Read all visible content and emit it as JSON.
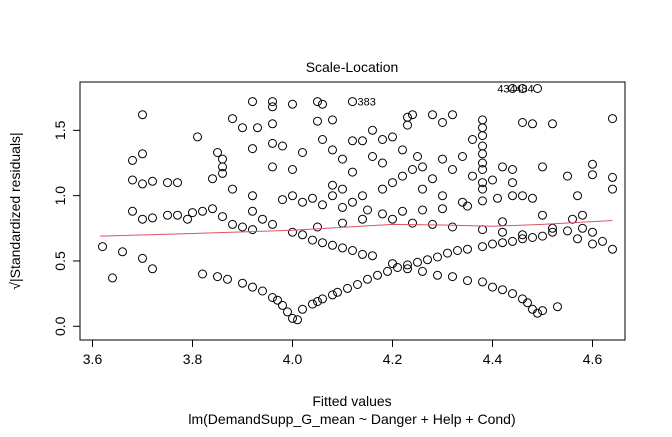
{
  "chart_data": {
    "type": "scatter",
    "title": "Scale-Location",
    "xlabel": "Fitted values",
    "subtitle": "lm(DemandSupp_G_mean ~ Danger + Help + Cond)",
    "ylabel": "√|Standardized residuals|",
    "xlim": [
      3.575,
      4.665
    ],
    "ylim": [
      -0.105,
      1.87
    ],
    "x_ticks": [
      3.6,
      3.8,
      4.0,
      4.2,
      4.4,
      4.6
    ],
    "x_tick_labels": [
      "3.6",
      "3.8",
      "4.0",
      "4.2",
      "4.4",
      "4.6"
    ],
    "y_ticks": [
      0.0,
      0.5,
      1.0,
      1.5
    ],
    "y_tick_labels": [
      "0.0",
      "0.5",
      "1.0",
      "1.5"
    ],
    "grid": false,
    "line_color": "#DF536B",
    "smoother": [
      [
        3.615,
        0.69
      ],
      [
        3.8,
        0.71
      ],
      [
        4.0,
        0.735
      ],
      [
        4.2,
        0.78
      ],
      [
        4.3,
        0.775
      ],
      [
        4.4,
        0.765
      ],
      [
        4.5,
        0.78
      ],
      [
        4.64,
        0.81
      ]
    ],
    "labels": [
      {
        "text": "383",
        "x": 4.12,
        "y": 1.72
      },
      {
        "text": "434",
        "x": 4.44,
        "y": 1.82
      },
      {
        "text": "484",
        "x": 4.46,
        "y": 1.82
      }
    ],
    "points": [
      [
        3.82,
        0.4
      ],
      [
        3.85,
        0.38
      ],
      [
        3.87,
        0.36
      ],
      [
        3.9,
        0.33
      ],
      [
        3.92,
        0.3
      ],
      [
        3.94,
        0.27
      ],
      [
        3.96,
        0.22
      ],
      [
        3.97,
        0.2
      ],
      [
        3.98,
        0.16
      ],
      [
        3.99,
        0.11
      ],
      [
        4.0,
        0.06
      ],
      [
        4.01,
        0.05
      ],
      [
        4.02,
        0.13
      ],
      [
        4.04,
        0.17
      ],
      [
        4.05,
        0.19
      ],
      [
        4.06,
        0.21
      ],
      [
        4.08,
        0.24
      ],
      [
        4.09,
        0.26
      ],
      [
        4.11,
        0.29
      ],
      [
        4.13,
        0.32
      ],
      [
        4.15,
        0.36
      ],
      [
        4.17,
        0.39
      ],
      [
        4.19,
        0.42
      ],
      [
        4.21,
        0.45
      ],
      [
        4.23,
        0.47
      ],
      [
        4.25,
        0.49
      ],
      [
        4.27,
        0.51
      ],
      [
        4.29,
        0.53
      ],
      [
        4.31,
        0.56
      ],
      [
        4.33,
        0.58
      ],
      [
        4.35,
        0.59
      ],
      [
        4.38,
        0.61
      ],
      [
        4.4,
        0.63
      ],
      [
        4.42,
        0.64
      ],
      [
        4.44,
        0.65
      ],
      [
        4.46,
        0.67
      ],
      [
        4.48,
        0.68
      ],
      [
        4.02,
        0.7
      ],
      [
        4.04,
        0.66
      ],
      [
        4.06,
        0.64
      ],
      [
        4.08,
        0.62
      ],
      [
        4.1,
        0.6
      ],
      [
        4.12,
        0.58
      ],
      [
        4.14,
        0.55
      ],
      [
        4.16,
        0.54
      ],
      [
        4.2,
        0.48
      ],
      [
        4.23,
        0.44
      ],
      [
        4.26,
        0.42
      ],
      [
        4.29,
        0.39
      ],
      [
        4.32,
        0.38
      ],
      [
        4.35,
        0.35
      ],
      [
        4.38,
        0.34
      ],
      [
        4.4,
        0.3
      ],
      [
        4.42,
        0.28
      ],
      [
        4.44,
        0.25
      ],
      [
        4.46,
        0.21
      ],
      [
        4.47,
        0.18
      ],
      [
        4.48,
        0.13
      ],
      [
        4.49,
        0.1
      ],
      [
        4.5,
        0.69
      ],
      [
        4.52,
        0.72
      ],
      [
        4.55,
        0.73
      ],
      [
        4.58,
        0.75
      ],
      [
        4.6,
        0.72
      ],
      [
        4.64,
        0.59
      ],
      [
        4.6,
        0.63
      ],
      [
        4.57,
        0.67
      ],
      [
        4.0,
        0.72
      ],
      [
        4.05,
        0.76
      ],
      [
        4.1,
        0.79
      ],
      [
        4.14,
        0.82
      ],
      [
        4.18,
        0.86
      ],
      [
        4.22,
        0.88
      ],
      [
        4.26,
        0.89
      ],
      [
        4.3,
        0.9
      ],
      [
        4.35,
        0.92
      ],
      [
        4.38,
        0.96
      ],
      [
        4.41,
        0.98
      ],
      [
        4.44,
        1.0
      ],
      [
        3.98,
        0.97
      ],
      [
        4.02,
        0.95
      ],
      [
        4.06,
        0.93
      ],
      [
        4.1,
        0.91
      ],
      [
        4.15,
        0.89
      ],
      [
        4.2,
        0.82
      ],
      [
        4.24,
        0.79
      ],
      [
        4.28,
        0.78
      ],
      [
        4.32,
        0.76
      ],
      [
        4.38,
        0.74
      ],
      [
        4.42,
        0.72
      ],
      [
        4.46,
        0.7
      ],
      [
        3.62,
        0.61
      ],
      [
        3.66,
        0.57
      ],
      [
        3.64,
        0.37
      ],
      [
        3.7,
        0.52
      ],
      [
        3.72,
        0.44
      ],
      [
        3.68,
        0.88
      ],
      [
        3.7,
        0.82
      ],
      [
        3.72,
        0.83
      ],
      [
        3.75,
        0.85
      ],
      [
        3.77,
        0.85
      ],
      [
        3.79,
        0.82
      ],
      [
        3.8,
        0.87
      ],
      [
        3.82,
        0.88
      ],
      [
        3.84,
        0.9
      ],
      [
        3.86,
        0.84
      ],
      [
        3.88,
        0.78
      ],
      [
        3.9,
        0.76
      ],
      [
        3.92,
        0.74
      ],
      [
        3.68,
        1.12
      ],
      [
        3.7,
        1.09
      ],
      [
        3.72,
        1.11
      ],
      [
        3.75,
        1.1
      ],
      [
        3.77,
        1.1
      ],
      [
        3.7,
        1.32
      ],
      [
        3.68,
        1.27
      ],
      [
        3.7,
        1.62
      ],
      [
        3.81,
        1.45
      ],
      [
        3.84,
        1.13
      ],
      [
        3.86,
        1.17
      ],
      [
        3.88,
        1.59
      ],
      [
        3.9,
        1.52
      ],
      [
        3.92,
        1.72
      ],
      [
        3.93,
        1.52
      ],
      [
        3.92,
        1.36
      ],
      [
        3.85,
        1.33
      ],
      [
        3.86,
        1.28
      ],
      [
        3.86,
        1.22
      ],
      [
        3.88,
        1.05
      ],
      [
        3.92,
        1.0
      ],
      [
        3.92,
        0.88
      ],
      [
        3.94,
        0.82
      ],
      [
        3.96,
        0.78
      ],
      [
        3.96,
        1.72
      ],
      [
        3.96,
        1.68
      ],
      [
        4.0,
        1.7
      ],
      [
        3.96,
        1.55
      ],
      [
        3.96,
        1.4
      ],
      [
        3.98,
        1.38
      ],
      [
        4.0,
        1.2
      ],
      [
        3.96,
        1.22
      ],
      [
        4.05,
        1.72
      ],
      [
        4.06,
        1.7
      ],
      [
        4.05,
        1.57
      ],
      [
        4.06,
        1.43
      ],
      [
        4.08,
        1.58
      ],
      [
        4.02,
        1.33
      ],
      [
        4.08,
        1.35
      ],
      [
        4.1,
        1.28
      ],
      [
        4.12,
        1.42
      ],
      [
        4.12,
        1.18
      ],
      [
        4.14,
        1.42
      ],
      [
        4.16,
        1.5
      ],
      [
        4.18,
        1.43
      ],
      [
        4.2,
        1.45
      ],
      [
        4.23,
        1.6
      ],
      [
        4.24,
        1.62
      ],
      [
        4.23,
        1.54
      ],
      [
        4.28,
        1.62
      ],
      [
        4.3,
        1.56
      ],
      [
        4.32,
        1.62
      ],
      [
        4.36,
        1.43
      ],
      [
        4.38,
        1.58
      ],
      [
        4.38,
        1.52
      ],
      [
        4.38,
        1.46
      ],
      [
        4.38,
        1.38
      ],
      [
        4.38,
        1.32
      ],
      [
        4.38,
        1.25
      ],
      [
        4.38,
        1.2
      ],
      [
        4.38,
        1.1
      ],
      [
        4.38,
        1.05
      ],
      [
        4.12,
        1.72
      ],
      [
        4.08,
        1.08
      ],
      [
        4.1,
        1.05
      ],
      [
        4.14,
        1.0
      ],
      [
        4.18,
        1.05
      ],
      [
        4.2,
        1.1
      ],
      [
        4.24,
        1.2
      ],
      [
        4.26,
        1.22
      ],
      [
        4.3,
        1.28
      ],
      [
        4.32,
        1.2
      ],
      [
        4.34,
        1.3
      ],
      [
        4.36,
        1.15
      ],
      [
        4.4,
        1.12
      ],
      [
        4.42,
        1.22
      ],
      [
        4.44,
        1.2
      ],
      [
        4.46,
        1.0
      ],
      [
        4.48,
        0.98
      ],
      [
        4.44,
        1.1
      ],
      [
        4.5,
        1.22
      ],
      [
        4.55,
        1.15
      ],
      [
        4.57,
        1.0
      ],
      [
        4.6,
        1.24
      ],
      [
        4.6,
        1.16
      ],
      [
        4.64,
        1.59
      ],
      [
        4.64,
        1.14
      ],
      [
        4.64,
        1.05
      ],
      [
        4.46,
        1.56
      ],
      [
        4.48,
        1.55
      ],
      [
        4.52,
        1.55
      ],
      [
        4.44,
        1.82
      ],
      [
        4.46,
        1.82
      ],
      [
        4.49,
        1.82
      ],
      [
        4.22,
        1.35
      ],
      [
        4.25,
        1.3
      ],
      [
        4.16,
        1.3
      ],
      [
        4.18,
        1.25
      ],
      [
        4.0,
        1.0
      ],
      [
        4.04,
        0.98
      ],
      [
        4.08,
        1.0
      ],
      [
        4.12,
        0.95
      ],
      [
        4.26,
        1.05
      ],
      [
        4.3,
        1.0
      ],
      [
        4.34,
        0.95
      ],
      [
        4.22,
        1.15
      ],
      [
        4.28,
        1.13
      ],
      [
        4.52,
        0.75
      ],
      [
        4.5,
        0.85
      ],
      [
        4.56,
        0.82
      ],
      [
        4.58,
        0.85
      ],
      [
        4.62,
        0.65
      ],
      [
        4.42,
        0.8
      ],
      [
        4.5,
        0.12
      ],
      [
        4.53,
        0.15
      ]
    ]
  }
}
